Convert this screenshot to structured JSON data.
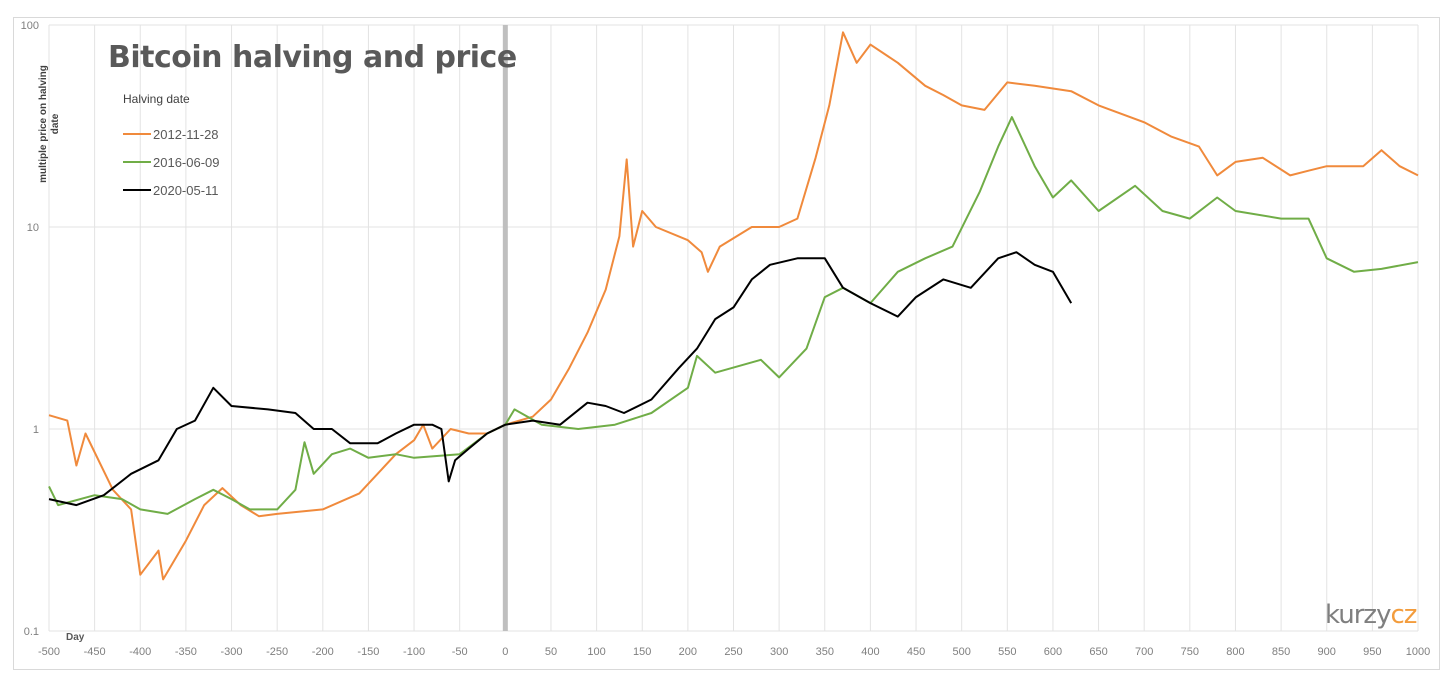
{
  "chart_data": {
    "type": "line",
    "title": "Bitcoin halving and price",
    "xlabel": "Day",
    "ylabel": "multiple price on halving date",
    "xlim": [
      -500,
      1000
    ],
    "x_ticks": [
      -500,
      -450,
      -400,
      -350,
      -300,
      -250,
      -200,
      -150,
      -100,
      -50,
      0,
      50,
      100,
      150,
      200,
      250,
      300,
      350,
      400,
      450,
      500,
      550,
      600,
      650,
      700,
      750,
      800,
      850,
      900,
      950,
      1000
    ],
    "ylim": [
      0.1,
      100
    ],
    "y_scale": "log",
    "y_ticks": [
      "0.1",
      "1",
      "10",
      "100"
    ],
    "grid": true,
    "halving_marker_day": 0,
    "legend": {
      "title": "Halving date",
      "placement": "top-left"
    },
    "series": [
      {
        "name": "2012-11-28",
        "color": "#f08a3c",
        "points": [
          [
            -500,
            1.17
          ],
          [
            -480,
            1.1
          ],
          [
            -470,
            0.66
          ],
          [
            -460,
            0.95
          ],
          [
            -430,
            0.5
          ],
          [
            -410,
            0.4
          ],
          [
            -400,
            0.19
          ],
          [
            -380,
            0.25
          ],
          [
            -375,
            0.18
          ],
          [
            -350,
            0.28
          ],
          [
            -330,
            0.42
          ],
          [
            -310,
            0.51
          ],
          [
            -290,
            0.42
          ],
          [
            -270,
            0.37
          ],
          [
            -250,
            0.38
          ],
          [
            -200,
            0.4
          ],
          [
            -160,
            0.48
          ],
          [
            -140,
            0.6
          ],
          [
            -120,
            0.75
          ],
          [
            -100,
            0.88
          ],
          [
            -90,
            1.05
          ],
          [
            -80,
            0.8
          ],
          [
            -60,
            1.0
          ],
          [
            -40,
            0.95
          ],
          [
            -20,
            0.95
          ],
          [
            0,
            1.05
          ],
          [
            30,
            1.15
          ],
          [
            50,
            1.4
          ],
          [
            70,
            2.0
          ],
          [
            90,
            3.0
          ],
          [
            110,
            4.9
          ],
          [
            125,
            9
          ],
          [
            133,
            21.6
          ],
          [
            140,
            8
          ],
          [
            150,
            12
          ],
          [
            165,
            10
          ],
          [
            200,
            8.6
          ],
          [
            215,
            7.5
          ],
          [
            222,
            6
          ],
          [
            235,
            8
          ],
          [
            270,
            10
          ],
          [
            300,
            10
          ],
          [
            320,
            11
          ],
          [
            340,
            22
          ],
          [
            355,
            40
          ],
          [
            370,
            92
          ],
          [
            385,
            65
          ],
          [
            400,
            80
          ],
          [
            430,
            65
          ],
          [
            460,
            50
          ],
          [
            480,
            45
          ],
          [
            500,
            40
          ],
          [
            525,
            38
          ],
          [
            550,
            52
          ],
          [
            580,
            50
          ],
          [
            620,
            47
          ],
          [
            650,
            40
          ],
          [
            700,
            33
          ],
          [
            730,
            28
          ],
          [
            760,
            25
          ],
          [
            780,
            18
          ],
          [
            800,
            21
          ],
          [
            830,
            22
          ],
          [
            860,
            18
          ],
          [
            880,
            19
          ],
          [
            900,
            20
          ],
          [
            940,
            20
          ],
          [
            960,
            24
          ],
          [
            980,
            20
          ],
          [
            1000,
            18
          ]
        ]
      },
      {
        "name": "2016-06-09",
        "color": "#70ad47",
        "points": [
          [
            -500,
            0.52
          ],
          [
            -490,
            0.42
          ],
          [
            -450,
            0.47
          ],
          [
            -420,
            0.45
          ],
          [
            -400,
            0.4
          ],
          [
            -370,
            0.38
          ],
          [
            -340,
            0.45
          ],
          [
            -320,
            0.5
          ],
          [
            -300,
            0.45
          ],
          [
            -280,
            0.4
          ],
          [
            -250,
            0.4
          ],
          [
            -230,
            0.5
          ],
          [
            -220,
            0.86
          ],
          [
            -210,
            0.6
          ],
          [
            -190,
            0.75
          ],
          [
            -170,
            0.8
          ],
          [
            -150,
            0.72
          ],
          [
            -120,
            0.75
          ],
          [
            -100,
            0.72
          ],
          [
            -50,
            0.75
          ],
          [
            -20,
            0.95
          ],
          [
            0,
            1.05
          ],
          [
            10,
            1.25
          ],
          [
            40,
            1.05
          ],
          [
            80,
            1.0
          ],
          [
            120,
            1.05
          ],
          [
            160,
            1.2
          ],
          [
            200,
            1.6
          ],
          [
            210,
            2.3
          ],
          [
            230,
            1.9
          ],
          [
            280,
            2.2
          ],
          [
            300,
            1.8
          ],
          [
            330,
            2.5
          ],
          [
            350,
            4.5
          ],
          [
            370,
            5
          ],
          [
            400,
            4.2
          ],
          [
            430,
            6
          ],
          [
            460,
            7
          ],
          [
            490,
            8
          ],
          [
            520,
            15
          ],
          [
            540,
            25
          ],
          [
            555,
            35
          ],
          [
            580,
            20
          ],
          [
            600,
            14
          ],
          [
            620,
            17
          ],
          [
            650,
            12
          ],
          [
            690,
            16
          ],
          [
            720,
            12
          ],
          [
            750,
            11
          ],
          [
            780,
            14
          ],
          [
            800,
            12
          ],
          [
            850,
            11
          ],
          [
            880,
            11
          ],
          [
            900,
            7
          ],
          [
            930,
            6
          ],
          [
            960,
            6.2
          ],
          [
            1000,
            6.7
          ]
        ]
      },
      {
        "name": "2020-05-11",
        "color": "#000000",
        "points": [
          [
            -500,
            0.45
          ],
          [
            -470,
            0.42
          ],
          [
            -440,
            0.47
          ],
          [
            -410,
            0.6
          ],
          [
            -380,
            0.7
          ],
          [
            -360,
            1.0
          ],
          [
            -340,
            1.1
          ],
          [
            -320,
            1.6
          ],
          [
            -300,
            1.3
          ],
          [
            -260,
            1.25
          ],
          [
            -230,
            1.2
          ],
          [
            -210,
            1.0
          ],
          [
            -190,
            1.0
          ],
          [
            -170,
            0.85
          ],
          [
            -140,
            0.85
          ],
          [
            -120,
            0.95
          ],
          [
            -100,
            1.05
          ],
          [
            -80,
            1.05
          ],
          [
            -70,
            1.0
          ],
          [
            -62,
            0.55
          ],
          [
            -55,
            0.7
          ],
          [
            -40,
            0.8
          ],
          [
            -20,
            0.95
          ],
          [
            0,
            1.05
          ],
          [
            30,
            1.1
          ],
          [
            60,
            1.05
          ],
          [
            90,
            1.35
          ],
          [
            110,
            1.3
          ],
          [
            130,
            1.2
          ],
          [
            160,
            1.4
          ],
          [
            190,
            2.0
          ],
          [
            210,
            2.5
          ],
          [
            230,
            3.5
          ],
          [
            250,
            4.0
          ],
          [
            270,
            5.5
          ],
          [
            290,
            6.5
          ],
          [
            320,
            7
          ],
          [
            350,
            7
          ],
          [
            370,
            5
          ],
          [
            400,
            4.2
          ],
          [
            430,
            3.6
          ],
          [
            450,
            4.5
          ],
          [
            480,
            5.5
          ],
          [
            510,
            5
          ],
          [
            540,
            7
          ],
          [
            560,
            7.5
          ],
          [
            580,
            6.5
          ],
          [
            600,
            6
          ],
          [
            620,
            4.2
          ]
        ]
      }
    ]
  },
  "watermark": "kurzycz"
}
